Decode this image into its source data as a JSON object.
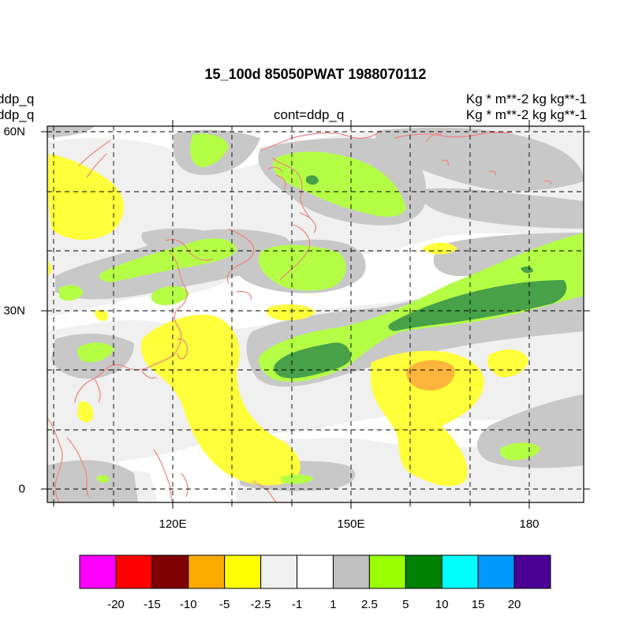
{
  "title": "15_100d 85050PWAT  1988070112",
  "left_labels": [
    "ddp_q",
    "ddp_q"
  ],
  "center_label": "cont=ddp_q",
  "right_labels": [
    "Kg  * m**-2 kg kg**-1",
    "Kg  * m**-2 kg kg**-1"
  ],
  "x_ticks": [
    "120E",
    "150E",
    "180"
  ],
  "y_ticks": [
    "60N",
    "30N",
    "0"
  ],
  "colorbar": {
    "colors": [
      "#ff00ff",
      "#ff0000",
      "#7f0000",
      "#ffaa00",
      "#ffff00",
      "#f0f0f0",
      "#ffffff",
      "#c0c0c0",
      "#99ff00",
      "#008000",
      "#00ffff",
      "#0099ff",
      "#4b0096"
    ],
    "labels": [
      "-20",
      "-15",
      "-10",
      "-5",
      "-2.5",
      "-1",
      "1",
      "2.5",
      "5",
      "10",
      "15",
      "20"
    ]
  },
  "palette": {
    "light_gray": "#f0f0f0",
    "gray": "#c8c8c8",
    "yellow": "#ffff3c",
    "orange": "#ffb43c",
    "lime": "#b4ff46",
    "dark_green": "#48a048",
    "coast": "#f08080"
  }
}
